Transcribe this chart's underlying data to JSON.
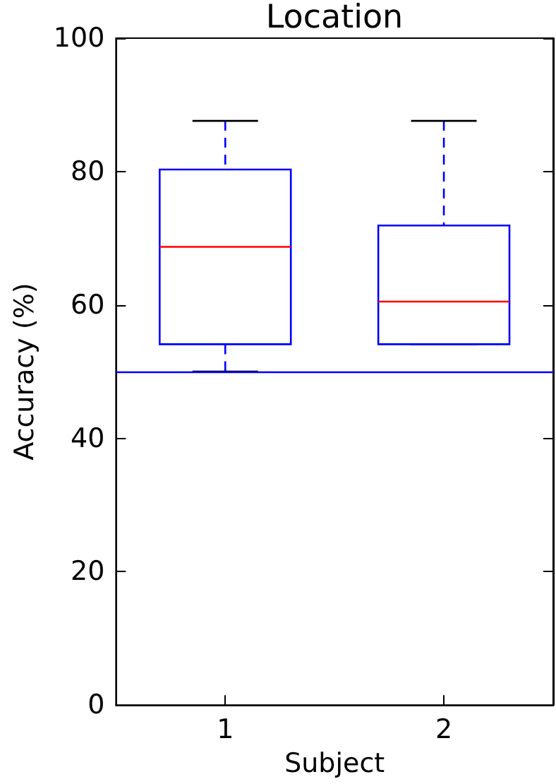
{
  "chart_data": {
    "type": "box",
    "title": "Location",
    "xlabel": "Subject",
    "ylabel": "Accuracy (%)",
    "categories": [
      "1",
      "2"
    ],
    "series": [
      {
        "color": "#0000ff",
        "boxes": [
          {
            "low": 50,
            "q1": 54.1,
            "median": 68.7,
            "q3": 80.3,
            "high": 87.6
          },
          {
            "low": 54.1,
            "q1": 54.1,
            "median": 60.5,
            "q3": 71.9,
            "high": 87.6
          }
        ]
      }
    ],
    "ylim": [
      0,
      100
    ],
    "yticks": [
      0,
      20,
      40,
      60,
      80,
      100
    ],
    "ref_lines": [
      {
        "axis": "y",
        "value": 50,
        "color": "#0000ff"
      }
    ],
    "grid": false
  }
}
